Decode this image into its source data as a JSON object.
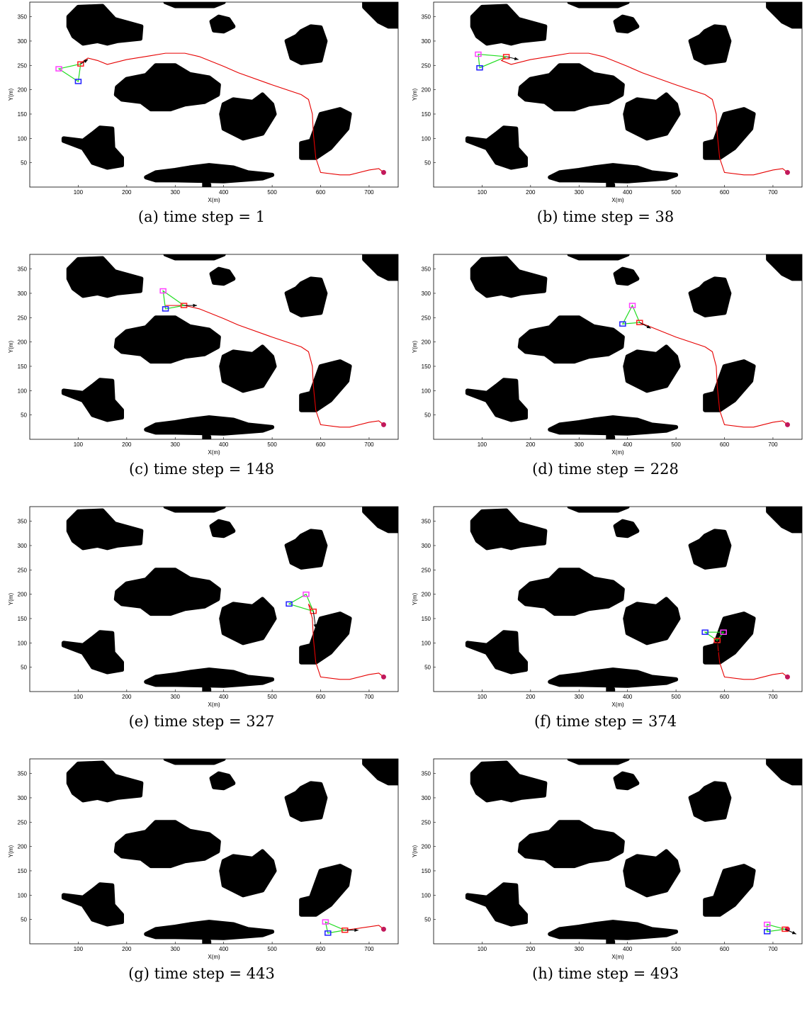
{
  "figure": {
    "panels": [
      {
        "label": "(a)",
        "caption": "(a) time step = 1"
      },
      {
        "label": "(b)",
        "caption": "(b) time step = 38"
      },
      {
        "label": "(c)",
        "caption": "(c) time step = 148"
      },
      {
        "label": "(d)",
        "caption": "(d) time step = 228"
      },
      {
        "label": "(e)",
        "caption": "(e) time step = 327"
      },
      {
        "label": "(f)",
        "caption": "(f) time step = 374"
      },
      {
        "label": "(g)",
        "caption": "(g) time step = 443"
      },
      {
        "label": "(h)",
        "caption": "(h) time step = 493"
      }
    ]
  },
  "chart_data": {
    "type": "scatter",
    "xlabel": "X(m)",
    "ylabel": "Y(m)",
    "xlim": [
      0,
      760
    ],
    "ylim": [
      0,
      380
    ],
    "xticks": [
      100,
      200,
      300,
      400,
      500,
      600,
      700
    ],
    "yticks": [
      50,
      100,
      150,
      200,
      250,
      300,
      350
    ],
    "grid": false,
    "colors": {
      "obstacle": "#000000",
      "path": "#e60000",
      "goal": "#c2185b",
      "link": "#22dd22",
      "robot1": "#ff2020",
      "robot2": "#ff40ff",
      "robot3": "#2020ff",
      "heading": "#000000"
    },
    "goal": [
      730,
      30
    ],
    "obstacles": [
      [
        [
          80,
          350
        ],
        [
          100,
          370
        ],
        [
          150,
          372
        ],
        [
          175,
          345
        ],
        [
          230,
          330
        ],
        [
          228,
          305
        ],
        [
          180,
          300
        ],
        [
          160,
          295
        ],
        [
          140,
          300
        ],
        [
          110,
          295
        ],
        [
          90,
          310
        ],
        [
          80,
          330
        ]
      ],
      [
        [
          180,
          205
        ],
        [
          200,
          222
        ],
        [
          240,
          230
        ],
        [
          260,
          250
        ],
        [
          300,
          250
        ],
        [
          330,
          232
        ],
        [
          370,
          225
        ],
        [
          390,
          210
        ],
        [
          388,
          190
        ],
        [
          360,
          175
        ],
        [
          320,
          170
        ],
        [
          290,
          160
        ],
        [
          250,
          160
        ],
        [
          230,
          175
        ],
        [
          190,
          180
        ],
        [
          178,
          190
        ]
      ],
      [
        [
          70,
          100
        ],
        [
          110,
          95
        ],
        [
          130,
          110
        ],
        [
          145,
          122
        ],
        [
          170,
          120
        ],
        [
          172,
          80
        ],
        [
          190,
          60
        ],
        [
          190,
          45
        ],
        [
          160,
          40
        ],
        [
          130,
          50
        ],
        [
          110,
          80
        ],
        [
          70,
          95
        ]
      ],
      [
        [
          375,
          340
        ],
        [
          390,
          350
        ],
        [
          410,
          345
        ],
        [
          420,
          330
        ],
        [
          400,
          320
        ],
        [
          380,
          322
        ]
      ],
      [
        [
          530,
          300
        ],
        [
          550,
          310
        ],
        [
          560,
          320
        ],
        [
          580,
          330
        ],
        [
          600,
          328
        ],
        [
          610,
          300
        ],
        [
          600,
          260
        ],
        [
          560,
          255
        ],
        [
          540,
          265
        ]
      ],
      [
        [
          400,
          170
        ],
        [
          420,
          180
        ],
        [
          460,
          175
        ],
        [
          480,
          190
        ],
        [
          500,
          170
        ],
        [
          505,
          150
        ],
        [
          480,
          110
        ],
        [
          440,
          100
        ],
        [
          400,
          120
        ],
        [
          395,
          150
        ]
      ],
      [
        [
          560,
          90
        ],
        [
          580,
          95
        ],
        [
          600,
          150
        ],
        [
          640,
          160
        ],
        [
          660,
          150
        ],
        [
          655,
          120
        ],
        [
          620,
          80
        ],
        [
          590,
          60
        ],
        [
          560,
          60
        ]
      ],
      [
        [
          240,
          20
        ],
        [
          260,
          30
        ],
        [
          300,
          35
        ],
        [
          330,
          40
        ],
        [
          370,
          45
        ],
        [
          420,
          40
        ],
        [
          450,
          30
        ],
        [
          500,
          25
        ],
        [
          480,
          18
        ],
        [
          440,
          15
        ],
        [
          400,
          12
        ],
        [
          300,
          14
        ],
        [
          260,
          14
        ]
      ],
      [
        [
          360,
          15
        ],
        [
          370,
          5
        ],
        [
          370,
          0
        ],
        [
          360,
          0
        ]
      ],
      [
        [
          690,
          370
        ],
        [
          720,
          340
        ],
        [
          740,
          330
        ],
        [
          760,
          330
        ],
        [
          760,
          380
        ],
        [
          690,
          380
        ]
      ],
      [
        [
          280,
          380
        ],
        [
          300,
          372
        ],
        [
          380,
          372
        ],
        [
          400,
          380
        ]
      ]
    ],
    "path": [
      [
        730,
        30
      ],
      [
        720,
        38
      ],
      [
        700,
        35
      ],
      [
        660,
        25
      ],
      [
        640,
        25
      ],
      [
        600,
        30
      ],
      [
        590,
        60
      ],
      [
        585,
        110
      ],
      [
        583,
        150
      ],
      [
        575,
        180
      ],
      [
        560,
        190
      ],
      [
        500,
        210
      ],
      [
        430,
        235
      ],
      [
        400,
        248
      ],
      [
        350,
        268
      ],
      [
        320,
        275
      ],
      [
        280,
        275
      ],
      [
        250,
        270
      ],
      [
        200,
        262
      ],
      [
        160,
        252
      ],
      [
        140,
        260
      ],
      [
        120,
        265
      ],
      [
        105,
        255
      ]
    ],
    "frames": [
      {
        "time_step": 1,
        "path_from": 0,
        "robots": [
          [
            105,
            253
          ],
          [
            60,
            243
          ],
          [
            100,
            217
          ]
        ],
        "heading": [
          120,
          262
        ]
      },
      {
        "time_step": 38,
        "path_from": 2,
        "robots": [
          [
            150,
            268
          ],
          [
            92,
            273
          ],
          [
            95,
            245
          ]
        ],
        "heading": [
          175,
          262
        ]
      },
      {
        "time_step": 148,
        "path_from": 6,
        "robots": [
          [
            318,
            275
          ],
          [
            275,
            305
          ],
          [
            280,
            268
          ]
        ],
        "heading": [
          345,
          275
        ]
      },
      {
        "time_step": 228,
        "path_from": 11,
        "robots": [
          [
            425,
            240
          ],
          [
            410,
            275
          ],
          [
            390,
            237
          ]
        ],
        "heading": [
          448,
          228
        ]
      },
      {
        "time_step": 327,
        "path_from": 13,
        "robots": [
          [
            585,
            165
          ],
          [
            570,
            200
          ],
          [
            535,
            180
          ]
        ],
        "heading": [
          590,
          130
        ]
      },
      {
        "time_step": 374,
        "path_from": 16,
        "robots": [
          [
            585,
            105
          ],
          [
            598,
            122
          ],
          [
            560,
            122
          ]
        ],
        "heading": [
          585,
          75
        ]
      },
      {
        "time_step": 443,
        "path_from": 20,
        "robots": [
          [
            650,
            28
          ],
          [
            610,
            45
          ],
          [
            615,
            22
          ]
        ],
        "heading": [
          678,
          28
        ]
      },
      {
        "time_step": 493,
        "path_from": 22,
        "robots": [
          [
            725,
            30
          ],
          [
            688,
            40
          ],
          [
            688,
            25
          ]
        ],
        "heading": [
          748,
          20
        ]
      }
    ]
  }
}
